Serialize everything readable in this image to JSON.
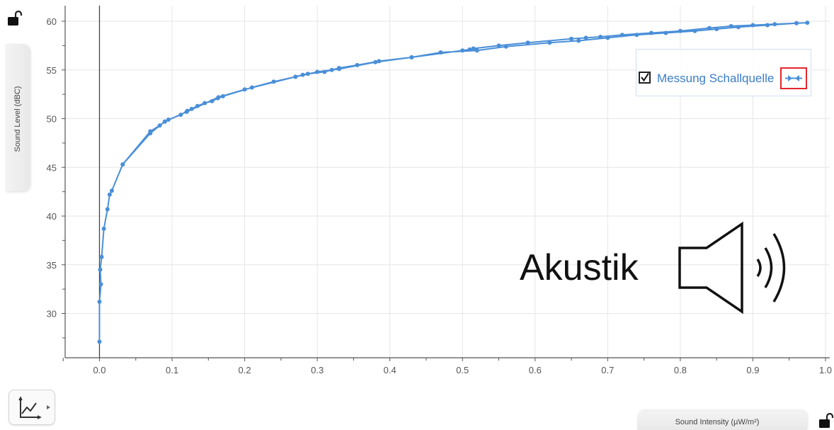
{
  "axes": {
    "y_title": "Sound Level (dBC)",
    "x_title": "Sound Intensity (µW/m²)"
  },
  "legend": {
    "series_label": "Messung Schallquelle",
    "checked": true
  },
  "overlay": {
    "text": "Akustik",
    "icon": "speaker-sound-icon"
  },
  "toolbar": {
    "graph_tool_icon": "graph-tools-icon"
  },
  "colors": {
    "series": "#4a8fd8",
    "grid": "#e6e6e6",
    "axis": "#555555",
    "highlight": "#e3262c"
  },
  "chart_data": {
    "type": "scatter",
    "title": "",
    "xlabel": "Sound Intensity (µW/m²)",
    "ylabel": "Sound Level (dBC)",
    "xlim": [
      -0.05,
      1.0
    ],
    "ylim": [
      25.5,
      60.8
    ],
    "x_ticks": [
      0.0,
      0.1,
      0.2,
      0.3,
      0.4,
      0.5,
      0.6,
      0.7,
      0.8,
      0.9,
      1.0
    ],
    "x_tick_labels": [
      "0.0",
      "0.1",
      "0.2",
      "0.3",
      "0.4",
      "0.5",
      "0.6",
      "0.7",
      "0.8",
      "0.9",
      "1.0"
    ],
    "y_ticks": [
      30,
      35,
      40,
      45,
      50,
      55,
      60
    ],
    "y_tick_labels": [
      "30",
      "35",
      "40",
      "45",
      "50",
      "55",
      "60"
    ],
    "grid": true,
    "legend_position": "top-right",
    "series": [
      {
        "name": "Messung Schallquelle",
        "points_connected": true,
        "x": [
          0.0,
          0.0,
          0.002,
          0.001,
          0.003,
          0.006,
          0.011,
          0.014,
          0.017,
          0.032,
          0.07,
          0.083,
          0.09,
          0.095,
          0.112,
          0.121,
          0.127,
          0.135,
          0.145,
          0.155,
          0.163,
          0.17,
          0.21,
          0.24,
          0.27,
          0.28,
          0.287,
          0.31,
          0.32,
          0.33,
          0.355,
          0.385,
          0.43,
          0.5,
          0.51,
          0.515,
          0.55,
          0.59,
          0.65,
          0.67,
          0.69,
          0.72,
          0.76,
          0.8,
          0.84,
          0.87,
          0.9,
          0.93,
          0.96,
          0.975,
          0.96,
          0.92,
          0.88,
          0.85,
          0.82,
          0.78,
          0.74,
          0.7,
          0.66,
          0.62,
          0.56,
          0.52,
          0.47,
          0.43,
          0.38,
          0.33,
          0.3,
          0.27,
          0.2,
          0.164,
          0.12,
          0.09,
          0.07,
          0.032
        ],
        "y": [
          27.1,
          31.2,
          33.0,
          34.5,
          35.8,
          38.7,
          40.7,
          42.2,
          42.6,
          45.3,
          48.7,
          49.3,
          49.7,
          49.9,
          50.4,
          50.8,
          51.0,
          51.3,
          51.6,
          51.8,
          52.1,
          52.3,
          53.2,
          53.8,
          54.3,
          54.5,
          54.6,
          54.8,
          55.0,
          55.2,
          55.5,
          55.9,
          56.3,
          57.0,
          57.1,
          57.2,
          57.5,
          57.8,
          58.2,
          58.3,
          58.4,
          58.6,
          58.8,
          59.0,
          59.3,
          59.5,
          59.6,
          59.7,
          59.8,
          59.85,
          59.8,
          59.6,
          59.4,
          59.2,
          59.0,
          58.8,
          58.6,
          58.3,
          58.0,
          57.8,
          57.4,
          57.0,
          56.8,
          56.3,
          55.8,
          55.1,
          54.8,
          54.3,
          53.0,
          52.2,
          50.7,
          49.7,
          48.5,
          45.3
        ]
      }
    ]
  }
}
